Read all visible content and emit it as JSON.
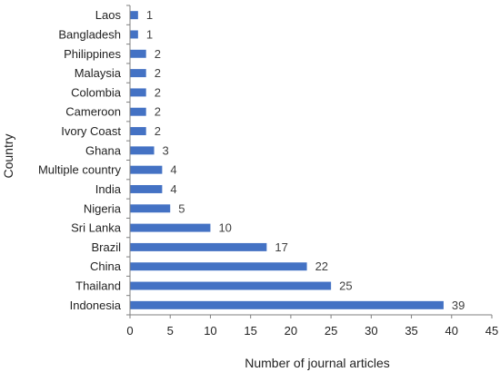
{
  "chart_data": {
    "type": "bar",
    "orientation": "horizontal",
    "categories": [
      "Laos",
      "Bangladesh",
      "Philippines",
      "Malaysia",
      "Colombia",
      "Cameroon",
      "Ivory Coast",
      "Ghana",
      "Multiple country",
      "India",
      "Nigeria",
      "Sri Lanka",
      "Brazil",
      "China",
      "Thailand",
      "Indonesia"
    ],
    "values": [
      1,
      1,
      2,
      2,
      2,
      2,
      2,
      3,
      4,
      4,
      5,
      10,
      17,
      22,
      25,
      39
    ],
    "data_labels": [
      "1",
      "1",
      "2",
      "2",
      "2",
      "2",
      "2",
      "3",
      "4",
      "4",
      "5",
      "10",
      "17",
      "22",
      "25",
      "39"
    ],
    "title": "",
    "xlabel": "Number of journal articles",
    "ylabel": "Country",
    "xlim": [
      0,
      45
    ],
    "xticks": [
      "0",
      "5",
      "10",
      "15",
      "20",
      "25",
      "30",
      "35",
      "40",
      "45"
    ],
    "grid": false,
    "legend": "none",
    "bar_color": "#4472C4"
  }
}
